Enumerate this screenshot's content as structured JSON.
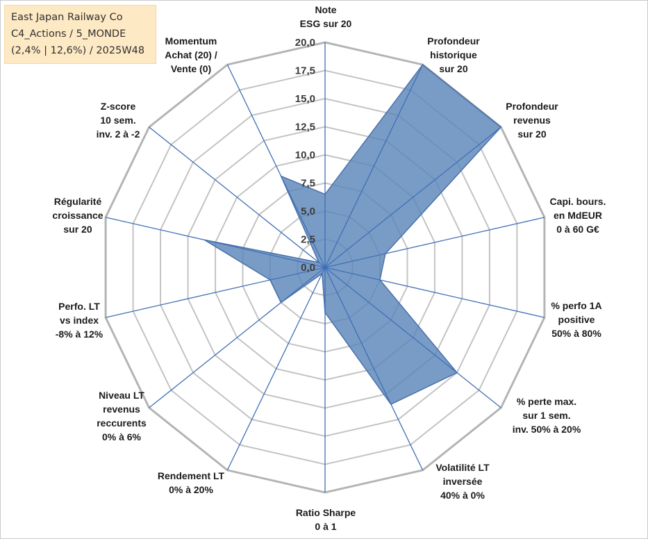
{
  "title_box": {
    "line1": "East Japan Railway Co",
    "line2": "C4_Actions / 5_MONDE",
    "line3": "(2,4% | 12,6%) / 2025W48"
  },
  "colors": {
    "area_fill": "#5b86bb",
    "area_stroke": "#4a70a8",
    "spoke": "#3f6fb4",
    "grid": "#c3c3c3",
    "outer_grid": "#b4b4b4",
    "title_bg": "#fde9c4"
  },
  "chart_data": {
    "type": "radar",
    "range": [
      0,
      20
    ],
    "ticks": [
      "0,0",
      "2,5",
      "5,0",
      "7,5",
      "10,0",
      "12,5",
      "15,0",
      "17,5",
      "20,0"
    ],
    "grid": true,
    "legend": "none",
    "axes": [
      {
        "label": [
          "Note",
          "ESG sur 20"
        ],
        "value": 6.5
      },
      {
        "label": [
          "Profondeur",
          "historique",
          "sur 20"
        ],
        "value": 20
      },
      {
        "label": [
          "Profondeur",
          "revenus",
          "sur 20"
        ],
        "value": 20
      },
      {
        "label": [
          "Capi. bours.",
          "en MdEUR",
          "0 à 60 G€"
        ],
        "value": 5.5
      },
      {
        "label": [
          "% perfo 1A",
          "positive",
          "50% à 80%"
        ],
        "value": 5.0
      },
      {
        "label": [
          "% perte max.",
          "sur 1 sem.",
          "inv. 50% à 20%"
        ],
        "value": 15.0
      },
      {
        "label": [
          "Volatilité LT",
          "inversée",
          "40% à 0%"
        ],
        "value": 13.5
      },
      {
        "label": [
          "Ratio Sharpe",
          "0 à 1"
        ],
        "value": 4.0
      },
      {
        "label": [
          "Rendement LT",
          "0% à 20%"
        ],
        "value": 0.6
      },
      {
        "label": [
          "Niveau LT",
          "revenus",
          "reccurents",
          "0% à 6%"
        ],
        "value": 5.0
      },
      {
        "label": [
          "Perfo. LT",
          "vs index",
          "-8% à 12%"
        ],
        "value": 5.0
      },
      {
        "label": [
          "Régularité",
          "croissance",
          "sur 20"
        ],
        "value": 11.0
      },
      {
        "label": [
          "Z-score",
          "10 sem.",
          "inv. 2 à -2"
        ],
        "value": 0.7
      },
      {
        "label": [
          "Momentum",
          "Achat (20) /",
          "Vente (0)"
        ],
        "value": 9.0
      }
    ]
  }
}
